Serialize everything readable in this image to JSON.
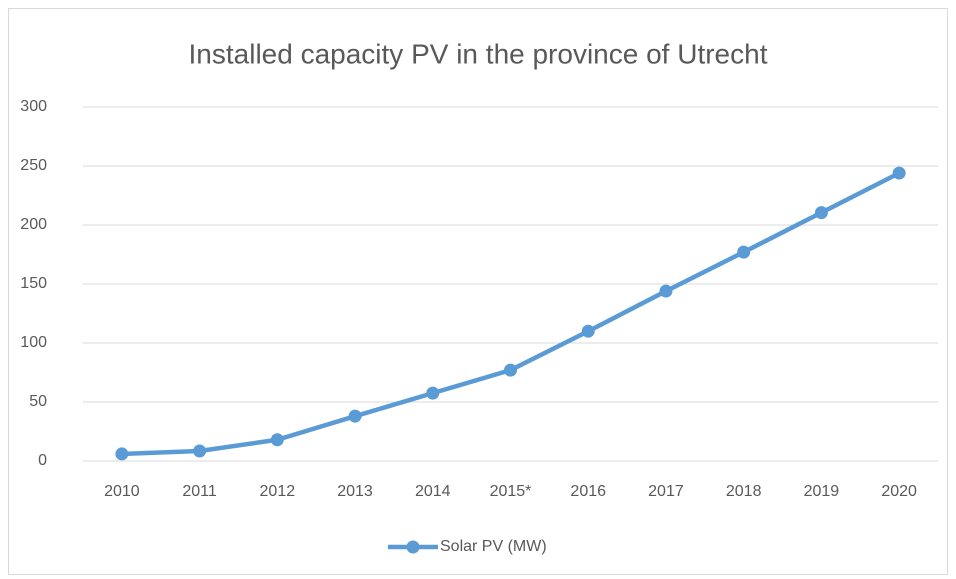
{
  "chart_data": {
    "type": "line",
    "title": "Installed capacity PV in the province of Utrecht",
    "categories": [
      "2010",
      "2011",
      "2012",
      "2013",
      "2014",
      "2015*",
      "2016",
      "2017",
      "2018",
      "2019",
      "2020"
    ],
    "series": [
      {
        "name": "Solar PV (MW)",
        "color": "#5b9bd5",
        "values": [
          6,
          8.5,
          18,
          38,
          57.5,
          77,
          110,
          144,
          177,
          210.5,
          244
        ]
      }
    ],
    "ylim": [
      0,
      300
    ],
    "yticks": [
      0,
      50,
      100,
      150,
      200,
      250,
      300
    ],
    "grid": true,
    "legend": "bottom"
  }
}
